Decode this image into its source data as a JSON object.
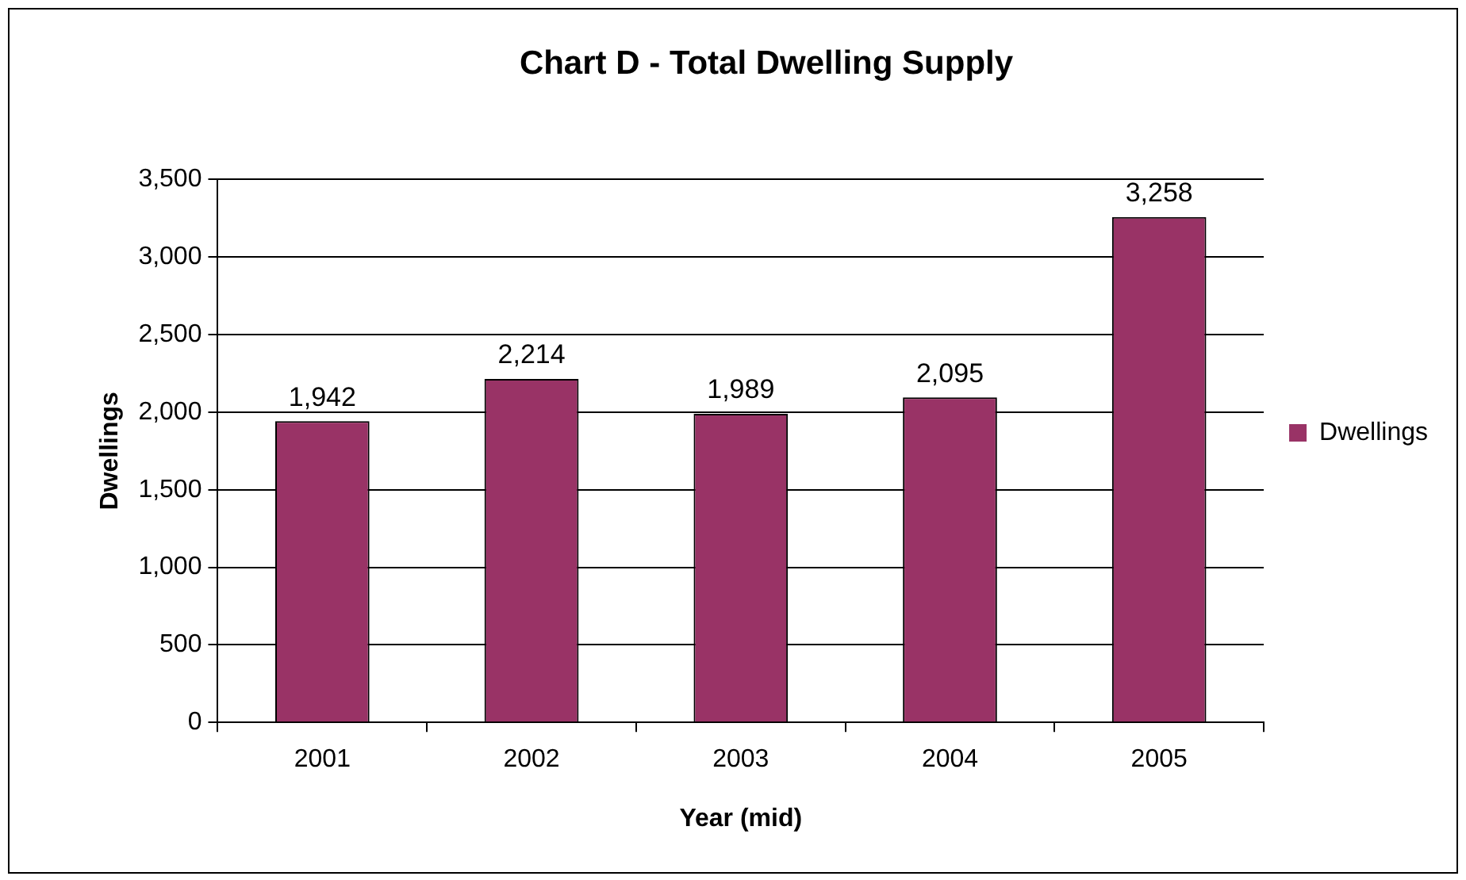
{
  "chart_data": {
    "type": "bar",
    "title": "Chart D - Total Dwelling Supply",
    "xlabel": "Year (mid)",
    "ylabel": "Dwellings",
    "categories": [
      "2001",
      "2002",
      "2003",
      "2004",
      "2005"
    ],
    "series": [
      {
        "name": "Dwellings",
        "color": "#993366",
        "values": [
          1942,
          2214,
          1989,
          2095,
          3258
        ],
        "value_labels": [
          "1,942",
          "2,214",
          "1,989",
          "2,095",
          "3,258"
        ]
      }
    ],
    "ylim": [
      0,
      3500
    ],
    "yticks": [
      0,
      500,
      {
        "value": 1000,
        "label": "1,000"
      },
      {
        "value": 1500,
        "label": "1,500"
      },
      {
        "value": 2000,
        "label": "2,000"
      },
      {
        "value": 2500,
        "label": "2,500"
      },
      {
        "value": 3000,
        "label": "3,000"
      },
      {
        "value": 3500,
        "label": "3,500"
      }
    ],
    "grid": "y",
    "legend": "right"
  }
}
